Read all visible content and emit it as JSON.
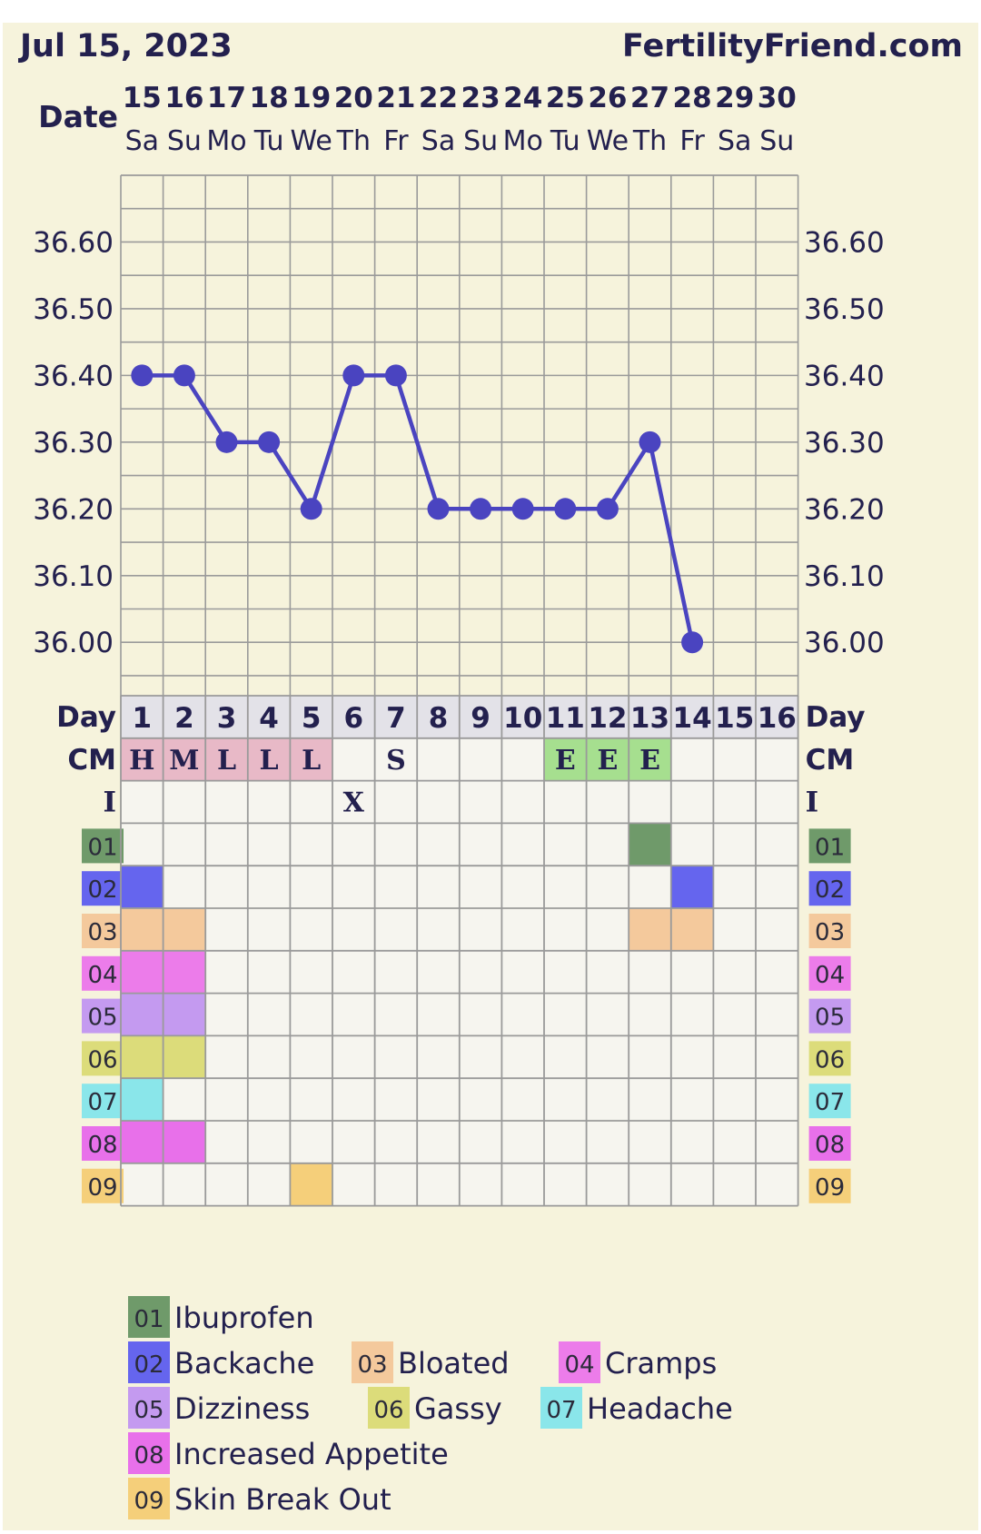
{
  "header": {
    "date": "Jul 15, 2023",
    "brand": "FertilityFriend.com"
  },
  "labels": {
    "date": "Date",
    "day": "Day",
    "cm": "CM",
    "intercourse": "I"
  },
  "colors": {
    "background": "#f6f3dc",
    "grid": "#9a9a9a",
    "line": "#4a44c0",
    "text": "#23204e",
    "day_row_bg": "#e3e2e8",
    "cell_bg": "#f6f5ef",
    "cm_h_m_l": "#e8b9c7",
    "cm_e": "#a6df8f"
  },
  "chart_data": {
    "type": "line",
    "title": "",
    "y_unit": "",
    "ylim": [
      35.92,
      36.7
    ],
    "y_ticks": [
      "36.00",
      "36.10",
      "36.20",
      "36.30",
      "36.40",
      "36.50",
      "36.60"
    ],
    "dates": [
      "15",
      "16",
      "17",
      "18",
      "19",
      "20",
      "21",
      "22",
      "23",
      "24",
      "25",
      "26",
      "27",
      "28",
      "29",
      "30"
    ],
    "weekdays": [
      "Sa",
      "Su",
      "Mo",
      "Tu",
      "We",
      "Th",
      "Fr",
      "Sa",
      "Su",
      "Mo",
      "Tu",
      "We",
      "Th",
      "Fr",
      "Sa",
      "Su"
    ],
    "cycle_days": [
      "1",
      "2",
      "3",
      "4",
      "5",
      "6",
      "7",
      "8",
      "9",
      "10",
      "11",
      "12",
      "13",
      "14",
      "15",
      "16"
    ],
    "temperatures": [
      36.4,
      36.4,
      36.3,
      36.3,
      36.2,
      36.4,
      36.4,
      36.2,
      36.2,
      36.2,
      36.2,
      36.2,
      36.3,
      36.0,
      null,
      null
    ],
    "cervical_mucus": [
      "H",
      "M",
      "L",
      "L",
      "L",
      "",
      "S",
      "",
      "",
      "",
      "E",
      "E",
      "E",
      "",
      "",
      ""
    ],
    "intercourse": [
      "",
      "",
      "",
      "",
      "",
      "X",
      "",
      "",
      "",
      "",
      "",
      "",
      "",
      "",
      "",
      ""
    ],
    "symptoms": [
      {
        "code": "01",
        "name": "Ibuprofen",
        "color": "#6f9a6a",
        "days": [
          13
        ]
      },
      {
        "code": "02",
        "name": "Backache",
        "color": "#6565ee",
        "days": [
          1,
          14
        ]
      },
      {
        "code": "03",
        "name": "Bloated",
        "color": "#f4c99c",
        "days": [
          1,
          2,
          13,
          14
        ]
      },
      {
        "code": "04",
        "name": "Cramps",
        "color": "#ec7cea",
        "days": [
          1,
          2
        ]
      },
      {
        "code": "05",
        "name": "Dizziness",
        "color": "#c49af0",
        "days": [
          1,
          2
        ]
      },
      {
        "code": "06",
        "name": "Gassy",
        "color": "#dcdc7a",
        "days": [
          1,
          2
        ]
      },
      {
        "code": "07",
        "name": "Headache",
        "color": "#8ae6ea",
        "days": [
          1
        ]
      },
      {
        "code": "08",
        "name": "Increased Appetite",
        "color": "#e870ea",
        "days": [
          1,
          2
        ]
      },
      {
        "code": "09",
        "name": "Skin Break Out",
        "color": "#f5cf7a",
        "days": [
          5
        ]
      }
    ]
  }
}
